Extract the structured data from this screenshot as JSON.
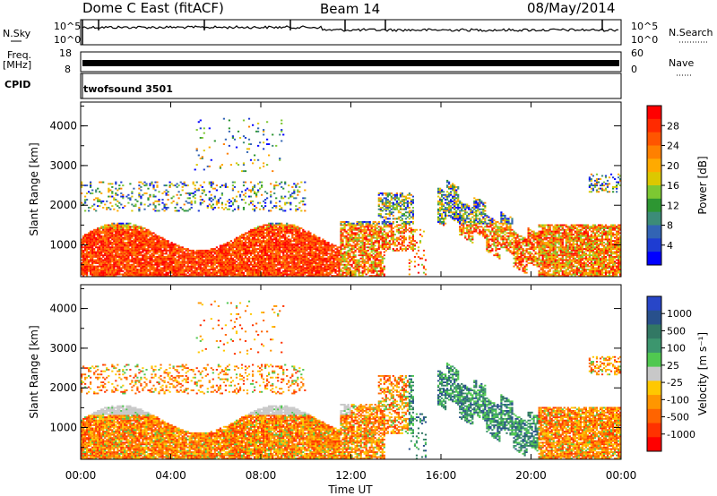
{
  "header": {
    "station": "Dome C East (fitACF)",
    "beam": "Beam 14",
    "date": "08/May/2014"
  },
  "top_panels": {
    "nsky_label": "N.Sky",
    "nsky_ticks": [
      "10^5",
      "10^0"
    ],
    "nsearch_label": "N.Search",
    "nsearch_ticks": [
      "10^5",
      "10^0"
    ],
    "freq_label_line1": "Freq.",
    "freq_label_line2": "[MHz]",
    "freq_ticks": [
      "18",
      "8"
    ],
    "nave_label": "Nave",
    "nave_ticks": [
      "60",
      "0"
    ],
    "cpid_label": "CPID",
    "cpid_value": "twofsound 3501"
  },
  "chart_data": [
    {
      "type": "heatmap",
      "name": "power",
      "ylabel": "Slant Range [km]",
      "yticks": [
        "4000",
        "3000",
        "2000",
        "1000"
      ],
      "ytick_values": [
        4000,
        3000,
        2000,
        1000
      ],
      "ylim": [
        200,
        4600
      ],
      "xlim_hours": [
        0,
        24
      ],
      "colorbar": {
        "label": "Power [dB]",
        "ticks": [
          "28",
          "24",
          "20",
          "16",
          "12",
          "8",
          "4"
        ],
        "colors": [
          "#ff0000",
          "#ff2a00",
          "#ff5500",
          "#ff8000",
          "#ffaa00",
          "#dcc800",
          "#7dc832",
          "#2d9632",
          "#3c8c78",
          "#3264b4",
          "#1e3cd2",
          "#0000ff"
        ]
      }
    },
    {
      "type": "heatmap",
      "name": "velocity",
      "ylabel": "Slant Range [km]",
      "xlabel": "Time UT",
      "yticks": [
        "4000",
        "3000",
        "2000",
        "1000"
      ],
      "ytick_values": [
        4000,
        3000,
        2000,
        1000
      ],
      "ylim": [
        200,
        4600
      ],
      "xticks": [
        "00:00",
        "04:00",
        "08:00",
        "12:00",
        "16:00",
        "20:00",
        "00:00"
      ],
      "xtick_hours": [
        0,
        4,
        8,
        12,
        16,
        20,
        24
      ],
      "colorbar": {
        "label": "Velocity [m s⁻¹]",
        "ticks": [
          "1000",
          "500",
          "100",
          "25",
          "-25",
          "-100",
          "-500",
          "-1000"
        ],
        "colors": [
          "#2846c8",
          "#28508c",
          "#327864",
          "#3c966e",
          "#50c850",
          "#c8c8c8",
          "#ffc800",
          "#ff9600",
          "#ff6400",
          "#ff3200",
          "#ff0000"
        ]
      }
    }
  ]
}
